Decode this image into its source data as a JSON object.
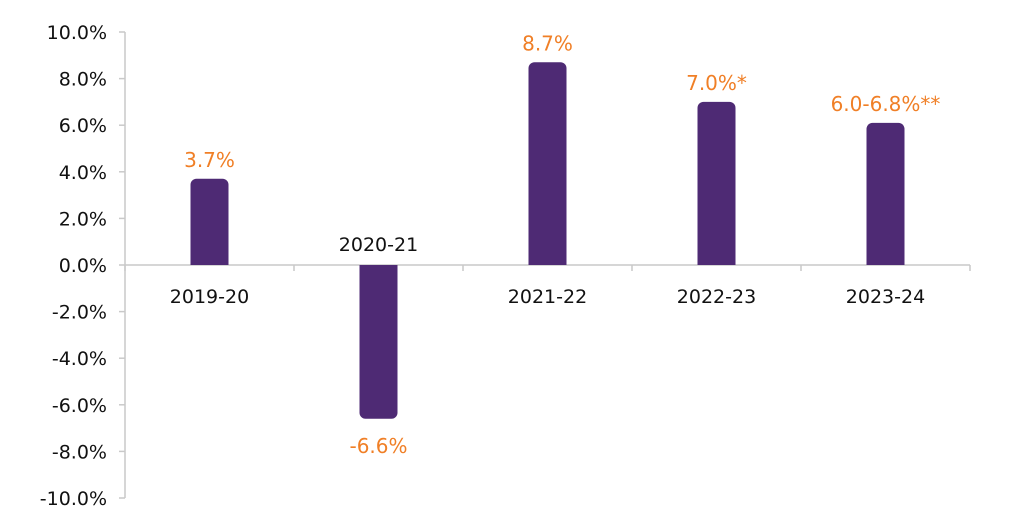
{
  "chart_data": {
    "type": "bar",
    "categories": [
      "2019-20",
      "2020-21",
      "2021-22",
      "2022-23",
      "2023-24"
    ],
    "values": [
      3.7,
      -6.6,
      8.7,
      7.0,
      6.1
    ],
    "data_labels": [
      "3.7%",
      "-6.6%",
      "8.7%",
      "7.0%*",
      "6.0-6.8%**"
    ],
    "ylim": [
      -10,
      10
    ],
    "yticks": [
      10,
      8,
      6,
      4,
      2,
      0,
      -2,
      -4,
      -6,
      -8,
      -10
    ],
    "ytick_labels": [
      "10.0%",
      "8.0%",
      "6.0%",
      "4.0%",
      "2.0%",
      "0.0%",
      "-2.0%",
      "-4.0%",
      "-6.0%",
      "-8.0%",
      "-10.0%"
    ],
    "grid": false,
    "legend": "none",
    "title": "",
    "xlabel": "",
    "ylabel": "",
    "colors": {
      "bar": "#4e2a74",
      "data_label": "#f07f26",
      "axis": "#c9c9c9",
      "text": "#111111"
    }
  }
}
